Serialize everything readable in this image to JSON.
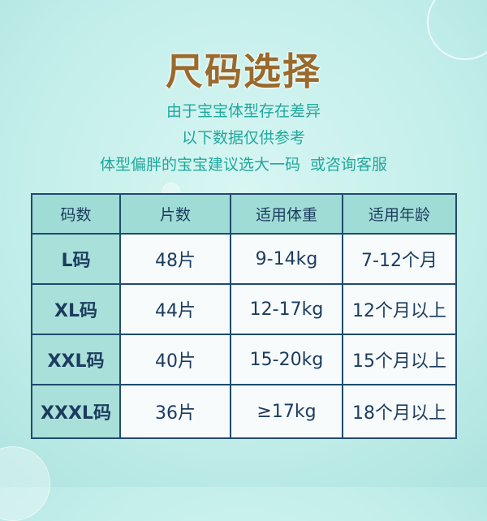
{
  "title": "尺码选择",
  "notes": [
    "由于宝宝体型存在差异",
    "以下数据仅供参考",
    "体型偏胖的宝宝建议选大一码  或咨询客服"
  ],
  "table": {
    "headers": [
      "码数",
      "片数",
      "适用体重",
      "适用年龄"
    ],
    "rows": [
      [
        "L码",
        "48片",
        "9-14kg",
        "7-12个月"
      ],
      [
        "XL码",
        "44片",
        "12-17kg",
        "12个月以上"
      ],
      [
        "XXL码",
        "40片",
        "15-20kg",
        "15个月以上"
      ],
      [
        "XXXL码",
        "36片",
        "≥17kg",
        "18个月以上"
      ]
    ]
  },
  "colors": {
    "title": "#9a6a2c",
    "notes": "#20a89c",
    "table_border": "#1f4b6e",
    "header_bg": "#9fdcd5"
  }
}
